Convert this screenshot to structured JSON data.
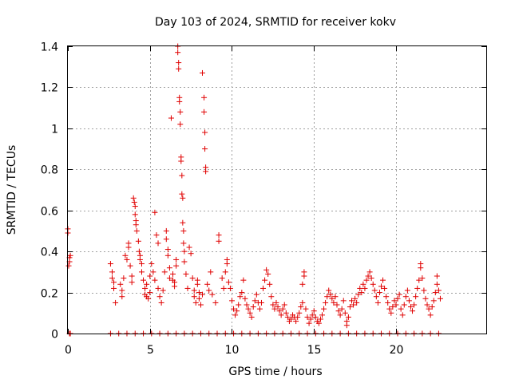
{
  "chart_data": {
    "type": "scatter",
    "title": "Day 103 of 2024, SRMTID for receiver kokv",
    "xlabel": "GPS time / hours",
    "ylabel": "SRMTID / TECUs",
    "xlim": [
      0,
      25.5
    ],
    "ylim": [
      0,
      1.4
    ],
    "xticks": [
      0,
      5,
      10,
      15,
      20
    ],
    "xtick_labels": [
      "0",
      "5",
      "10",
      "15",
      "20"
    ],
    "yticks": [
      0,
      0.2,
      0.4,
      0.6,
      0.8,
      1,
      1.2,
      1.4
    ],
    "ytick_labels": [
      "0",
      "0.2",
      "0.4",
      "0.6",
      "0.8",
      "1",
      "1.2",
      "1.4"
    ],
    "grid": true,
    "marker": "plus",
    "color": "#e00000",
    "series": [
      {
        "name": "SRMTID",
        "points": [
          [
            0.0,
            0.51
          ],
          [
            0.0,
            0.49
          ],
          [
            0.05,
            0.33
          ],
          [
            0.1,
            0.35
          ],
          [
            0.1,
            0.37
          ],
          [
            0.15,
            0.38
          ],
          [
            0.1,
            0.0
          ],
          [
            0.15,
            0.0
          ],
          [
            2.6,
            0.34
          ],
          [
            2.7,
            0.3
          ],
          [
            2.7,
            0.27
          ],
          [
            2.8,
            0.25
          ],
          [
            2.8,
            0.22
          ],
          [
            2.9,
            0.15
          ],
          [
            3.2,
            0.24
          ],
          [
            3.3,
            0.21
          ],
          [
            3.3,
            0.18
          ],
          [
            3.4,
            0.27
          ],
          [
            3.5,
            0.38
          ],
          [
            3.6,
            0.36
          ],
          [
            3.7,
            0.42
          ],
          [
            3.7,
            0.44
          ],
          [
            3.8,
            0.33
          ],
          [
            3.9,
            0.28
          ],
          [
            3.9,
            0.25
          ],
          [
            4.0,
            0.66
          ],
          [
            4.05,
            0.64
          ],
          [
            4.1,
            0.62
          ],
          [
            4.1,
            0.58
          ],
          [
            4.15,
            0.55
          ],
          [
            4.15,
            0.53
          ],
          [
            4.2,
            0.5
          ],
          [
            4.3,
            0.45
          ],
          [
            4.35,
            0.4
          ],
          [
            4.4,
            0.38
          ],
          [
            4.4,
            0.36
          ],
          [
            4.5,
            0.34
          ],
          [
            4.5,
            0.3
          ],
          [
            4.6,
            0.26
          ],
          [
            4.7,
            0.22
          ],
          [
            4.7,
            0.19
          ],
          [
            4.8,
            0.24
          ],
          [
            4.8,
            0.18
          ],
          [
            4.9,
            0.17
          ],
          [
            5.0,
            0.2
          ],
          [
            5.0,
            0.28
          ],
          [
            5.1,
            0.34
          ],
          [
            5.2,
            0.3
          ],
          [
            5.3,
            0.26
          ],
          [
            5.4,
            0.48
          ],
          [
            5.5,
            0.44
          ],
          [
            5.3,
            0.59
          ],
          [
            5.5,
            0.22
          ],
          [
            5.6,
            0.18
          ],
          [
            5.7,
            0.15
          ],
          [
            5.8,
            0.21
          ],
          [
            5.9,
            0.3
          ],
          [
            6.0,
            0.5
          ],
          [
            6.0,
            0.46
          ],
          [
            6.1,
            0.41
          ],
          [
            6.1,
            0.38
          ],
          [
            6.2,
            0.32
          ],
          [
            6.2,
            0.27
          ],
          [
            6.3,
            1.05
          ],
          [
            6.4,
            0.29
          ],
          [
            6.4,
            0.26
          ],
          [
            6.5,
            0.25
          ],
          [
            6.5,
            0.23
          ],
          [
            6.6,
            0.33
          ],
          [
            6.6,
            0.36
          ],
          [
            6.7,
            1.4
          ],
          [
            6.7,
            1.37
          ],
          [
            6.75,
            1.32
          ],
          [
            6.75,
            1.29
          ],
          [
            6.8,
            1.15
          ],
          [
            6.8,
            1.13
          ],
          [
            6.85,
            1.08
          ],
          [
            6.85,
            1.02
          ],
          [
            6.9,
            0.86
          ],
          [
            6.9,
            0.84
          ],
          [
            6.95,
            0.77
          ],
          [
            6.95,
            0.68
          ],
          [
            7.0,
            0.66
          ],
          [
            7.0,
            0.54
          ],
          [
            7.05,
            0.5
          ],
          [
            7.05,
            0.44
          ],
          [
            7.1,
            0.4
          ],
          [
            7.1,
            0.35
          ],
          [
            7.2,
            0.29
          ],
          [
            7.3,
            0.22
          ],
          [
            7.4,
            0.42
          ],
          [
            7.5,
            0.39
          ],
          [
            7.6,
            0.27
          ],
          [
            7.7,
            0.21
          ],
          [
            7.7,
            0.18
          ],
          [
            7.8,
            0.15
          ],
          [
            7.9,
            0.24
          ],
          [
            7.9,
            0.26
          ],
          [
            8.0,
            0.2
          ],
          [
            8.0,
            0.17
          ],
          [
            8.1,
            0.14
          ],
          [
            8.2,
            0.19
          ],
          [
            8.2,
            1.27
          ],
          [
            8.3,
            1.15
          ],
          [
            8.3,
            1.08
          ],
          [
            8.35,
            0.98
          ],
          [
            8.35,
            0.9
          ],
          [
            8.4,
            0.81
          ],
          [
            8.4,
            0.79
          ],
          [
            8.5,
            0.24
          ],
          [
            8.6,
            0.21
          ],
          [
            8.7,
            0.3
          ],
          [
            8.8,
            0.19
          ],
          [
            9.0,
            0.15
          ],
          [
            9.2,
            0.48
          ],
          [
            9.2,
            0.45
          ],
          [
            9.4,
            0.27
          ],
          [
            9.5,
            0.22
          ],
          [
            9.6,
            0.3
          ],
          [
            9.7,
            0.34
          ],
          [
            9.7,
            0.36
          ],
          [
            9.8,
            0.25
          ],
          [
            9.9,
            0.22
          ],
          [
            10.0,
            0.16
          ],
          [
            10.1,
            0.12
          ],
          [
            10.2,
            0.09
          ],
          [
            10.3,
            0.11
          ],
          [
            10.4,
            0.14
          ],
          [
            10.5,
            0.18
          ],
          [
            10.6,
            0.2
          ],
          [
            10.7,
            0.26
          ],
          [
            10.8,
            0.17
          ],
          [
            10.9,
            0.14
          ],
          [
            11.0,
            0.12
          ],
          [
            11.1,
            0.1
          ],
          [
            11.2,
            0.08
          ],
          [
            11.3,
            0.13
          ],
          [
            11.4,
            0.16
          ],
          [
            11.5,
            0.19
          ],
          [
            11.6,
            0.15
          ],
          [
            11.7,
            0.12
          ],
          [
            11.8,
            0.15
          ],
          [
            11.9,
            0.22
          ],
          [
            12.0,
            0.26
          ],
          [
            12.1,
            0.31
          ],
          [
            12.2,
            0.29
          ],
          [
            12.3,
            0.24
          ],
          [
            12.4,
            0.18
          ],
          [
            12.5,
            0.14
          ],
          [
            12.6,
            0.12
          ],
          [
            12.7,
            0.15
          ],
          [
            12.8,
            0.13
          ],
          [
            12.9,
            0.11
          ],
          [
            13.0,
            0.09
          ],
          [
            13.1,
            0.12
          ],
          [
            13.2,
            0.14
          ],
          [
            13.3,
            0.1
          ],
          [
            13.4,
            0.08
          ],
          [
            13.5,
            0.06
          ],
          [
            13.6,
            0.07
          ],
          [
            13.7,
            0.09
          ],
          [
            13.8,
            0.08
          ],
          [
            13.9,
            0.06
          ],
          [
            14.0,
            0.08
          ],
          [
            14.1,
            0.1
          ],
          [
            14.2,
            0.13
          ],
          [
            14.3,
            0.15
          ],
          [
            14.3,
            0.24
          ],
          [
            14.4,
            0.28
          ],
          [
            14.4,
            0.3
          ],
          [
            14.5,
            0.12
          ],
          [
            14.6,
            0.08
          ],
          [
            14.7,
            0.05
          ],
          [
            14.8,
            0.07
          ],
          [
            14.9,
            0.09
          ],
          [
            15.0,
            0.11
          ],
          [
            15.1,
            0.08
          ],
          [
            15.2,
            0.06
          ],
          [
            15.3,
            0.05
          ],
          [
            15.4,
            0.07
          ],
          [
            15.5,
            0.09
          ],
          [
            15.6,
            0.12
          ],
          [
            15.7,
            0.15
          ],
          [
            15.8,
            0.18
          ],
          [
            15.9,
            0.21
          ],
          [
            16.0,
            0.19
          ],
          [
            16.1,
            0.17
          ],
          [
            16.2,
            0.15
          ],
          [
            16.3,
            0.18
          ],
          [
            16.4,
            0.14
          ],
          [
            16.5,
            0.11
          ],
          [
            16.6,
            0.09
          ],
          [
            16.7,
            0.12
          ],
          [
            16.8,
            0.16
          ],
          [
            16.9,
            0.1
          ],
          [
            17.0,
            0.06
          ],
          [
            17.0,
            0.04
          ],
          [
            17.1,
            0.08
          ],
          [
            17.2,
            0.13
          ],
          [
            17.3,
            0.16
          ],
          [
            17.4,
            0.14
          ],
          [
            17.5,
            0.17
          ],
          [
            17.6,
            0.15
          ],
          [
            17.7,
            0.19
          ],
          [
            17.8,
            0.22
          ],
          [
            17.9,
            0.2
          ],
          [
            18.0,
            0.24
          ],
          [
            18.1,
            0.22
          ],
          [
            18.2,
            0.26
          ],
          [
            18.3,
            0.28
          ],
          [
            18.4,
            0.3
          ],
          [
            18.5,
            0.27
          ],
          [
            18.6,
            0.24
          ],
          [
            18.7,
            0.21
          ],
          [
            18.8,
            0.18
          ],
          [
            18.9,
            0.15
          ],
          [
            19.0,
            0.2
          ],
          [
            19.1,
            0.23
          ],
          [
            19.2,
            0.26
          ],
          [
            19.3,
            0.22
          ],
          [
            19.4,
            0.18
          ],
          [
            19.5,
            0.15
          ],
          [
            19.6,
            0.12
          ],
          [
            19.7,
            0.1
          ],
          [
            19.8,
            0.13
          ],
          [
            19.9,
            0.16
          ],
          [
            20.0,
            0.14
          ],
          [
            20.1,
            0.17
          ],
          [
            20.2,
            0.19
          ],
          [
            20.3,
            0.12
          ],
          [
            20.4,
            0.09
          ],
          [
            20.5,
            0.14
          ],
          [
            20.6,
            0.18
          ],
          [
            20.7,
            0.21
          ],
          [
            20.8,
            0.16
          ],
          [
            20.9,
            0.13
          ],
          [
            21.0,
            0.11
          ],
          [
            21.1,
            0.14
          ],
          [
            21.2,
            0.18
          ],
          [
            21.3,
            0.22
          ],
          [
            21.4,
            0.26
          ],
          [
            21.5,
            0.32
          ],
          [
            21.5,
            0.34
          ],
          [
            21.6,
            0.27
          ],
          [
            21.7,
            0.21
          ],
          [
            21.8,
            0.17
          ],
          [
            21.9,
            0.14
          ],
          [
            22.0,
            0.12
          ],
          [
            22.1,
            0.09
          ],
          [
            22.2,
            0.13
          ],
          [
            22.3,
            0.16
          ],
          [
            22.4,
            0.2
          ],
          [
            22.5,
            0.24
          ],
          [
            22.5,
            0.28
          ],
          [
            22.6,
            0.21
          ],
          [
            22.7,
            0.17
          ],
          [
            2.6,
            0.0
          ],
          [
            3.1,
            0.0
          ],
          [
            3.6,
            0.0
          ],
          [
            4.1,
            0.0
          ],
          [
            4.6,
            0.0
          ],
          [
            5.1,
            0.0
          ],
          [
            5.6,
            0.0
          ],
          [
            6.1,
            0.0
          ],
          [
            6.6,
            0.0
          ],
          [
            7.1,
            0.0
          ],
          [
            7.6,
            0.0
          ],
          [
            8.1,
            0.0
          ],
          [
            8.6,
            0.0
          ],
          [
            9.1,
            0.0
          ],
          [
            9.6,
            0.0
          ],
          [
            10.1,
            0.0
          ],
          [
            10.6,
            0.0
          ],
          [
            11.1,
            0.0
          ],
          [
            11.6,
            0.0
          ],
          [
            12.1,
            0.0
          ],
          [
            12.6,
            0.0
          ],
          [
            13.1,
            0.0
          ],
          [
            13.6,
            0.0
          ],
          [
            14.1,
            0.0
          ],
          [
            14.6,
            0.0
          ],
          [
            15.1,
            0.0
          ],
          [
            15.6,
            0.0
          ],
          [
            16.1,
            0.0
          ],
          [
            16.6,
            0.0
          ],
          [
            17.1,
            0.0
          ],
          [
            17.6,
            0.0
          ],
          [
            18.1,
            0.0
          ],
          [
            18.6,
            0.0
          ],
          [
            19.1,
            0.0
          ],
          [
            19.6,
            0.0
          ],
          [
            20.1,
            0.0
          ],
          [
            20.6,
            0.0
          ],
          [
            21.1,
            0.0
          ],
          [
            21.6,
            0.0
          ],
          [
            22.1,
            0.0
          ],
          [
            22.6,
            0.0
          ]
        ]
      }
    ]
  }
}
